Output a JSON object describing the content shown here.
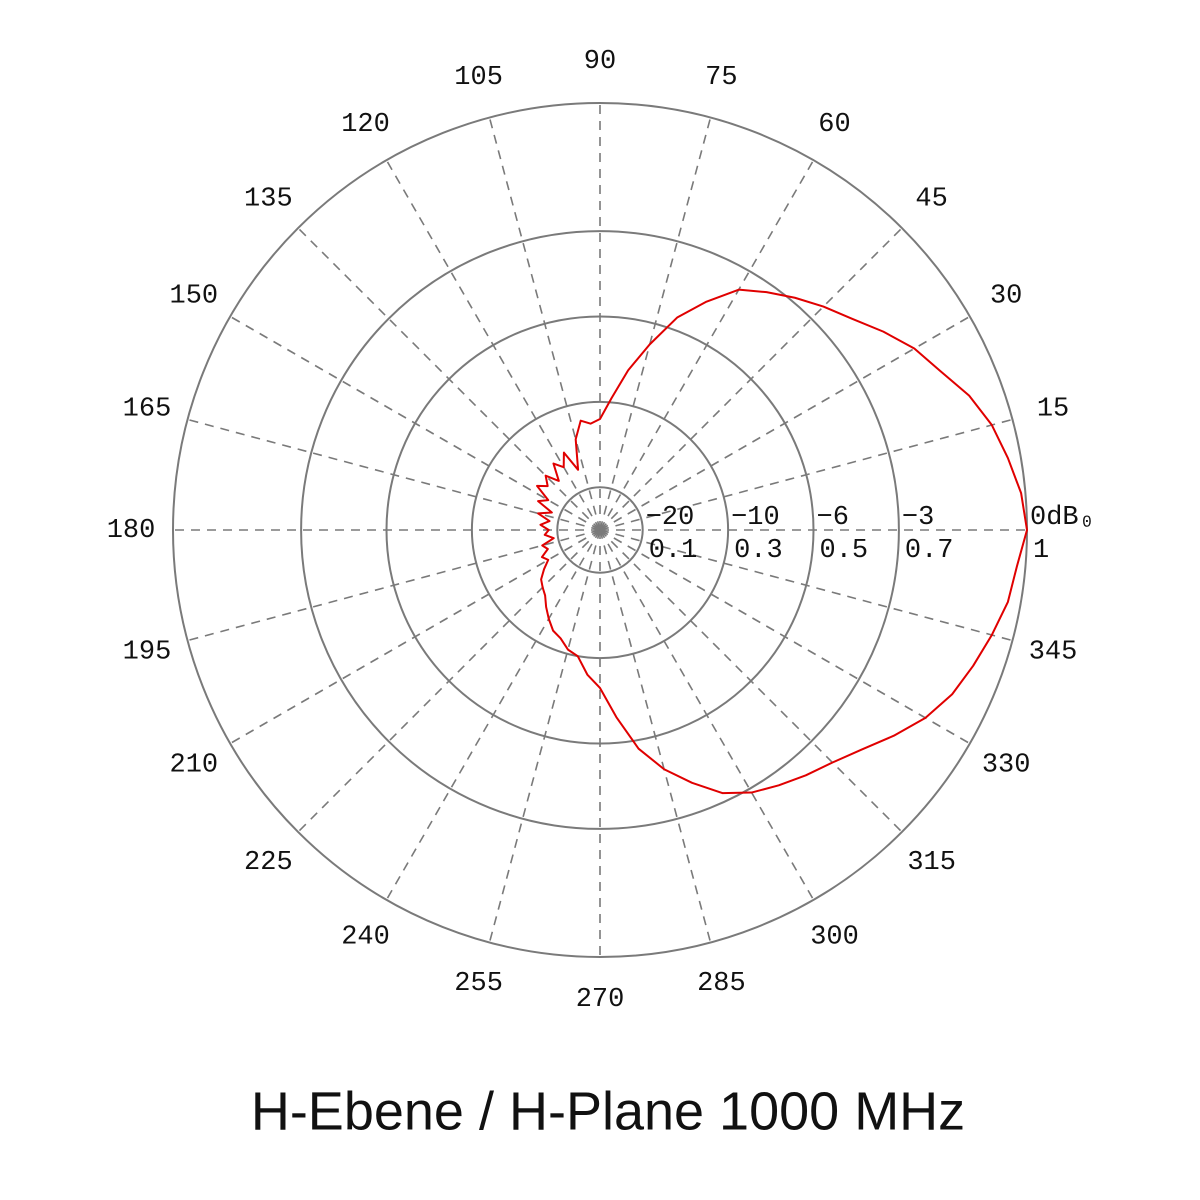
{
  "chart_data": {
    "type": "polar",
    "title": "H-Ebene / H-Plane 1000 MHz",
    "color": "#e00000",
    "theta": [
      0,
      5,
      10,
      15,
      20,
      25,
      30,
      35,
      40,
      45,
      50,
      55,
      60,
      65,
      70,
      75,
      80,
      85,
      90,
      95,
      100,
      105,
      110,
      115,
      120,
      125,
      130,
      135,
      140,
      145,
      150,
      155,
      160,
      165,
      170,
      175,
      180,
      185,
      190,
      195,
      200,
      205,
      210,
      215,
      220,
      225,
      230,
      235,
      240,
      245,
      250,
      255,
      260,
      265,
      270,
      275,
      280,
      285,
      290,
      295,
      300,
      305,
      310,
      315,
      320,
      325,
      330,
      335,
      340,
      345,
      350,
      355
    ],
    "values": [
      1.0,
      0.99,
      0.97,
      0.95,
      0.92,
      0.88,
      0.85,
      0.81,
      0.77,
      0.74,
      0.71,
      0.68,
      0.65,
      0.59,
      0.53,
      0.45,
      0.38,
      0.31,
      0.26,
      0.25,
      0.26,
      0.22,
      0.15,
      0.2,
      0.17,
      0.19,
      0.15,
      0.18,
      0.16,
      0.18,
      0.14,
      0.16,
      0.12,
      0.15,
      0.12,
      0.14,
      0.12,
      0.13,
      0.11,
      0.14,
      0.13,
      0.15,
      0.14,
      0.16,
      0.18,
      0.19,
      0.2,
      0.22,
      0.24,
      0.26,
      0.27,
      0.29,
      0.3,
      0.34,
      0.37,
      0.44,
      0.52,
      0.58,
      0.63,
      0.68,
      0.71,
      0.73,
      0.75,
      0.77,
      0.8,
      0.84,
      0.88,
      0.91,
      0.93,
      0.95,
      0.97,
      0.98
    ],
    "rlim": [
      0,
      1
    ],
    "rticks": [
      0.1,
      0.3,
      0.5,
      0.7,
      1
    ],
    "db_labels": [
      "−20",
      "−10",
      "−6",
      "−3",
      "0dB₀"
    ],
    "thetaticks": [
      15,
      30,
      45,
      60,
      75,
      90,
      105,
      120,
      135,
      150,
      165,
      180,
      195,
      210,
      225,
      240,
      255,
      270,
      285,
      300,
      315,
      330,
      345
    ],
    "grid": true
  }
}
